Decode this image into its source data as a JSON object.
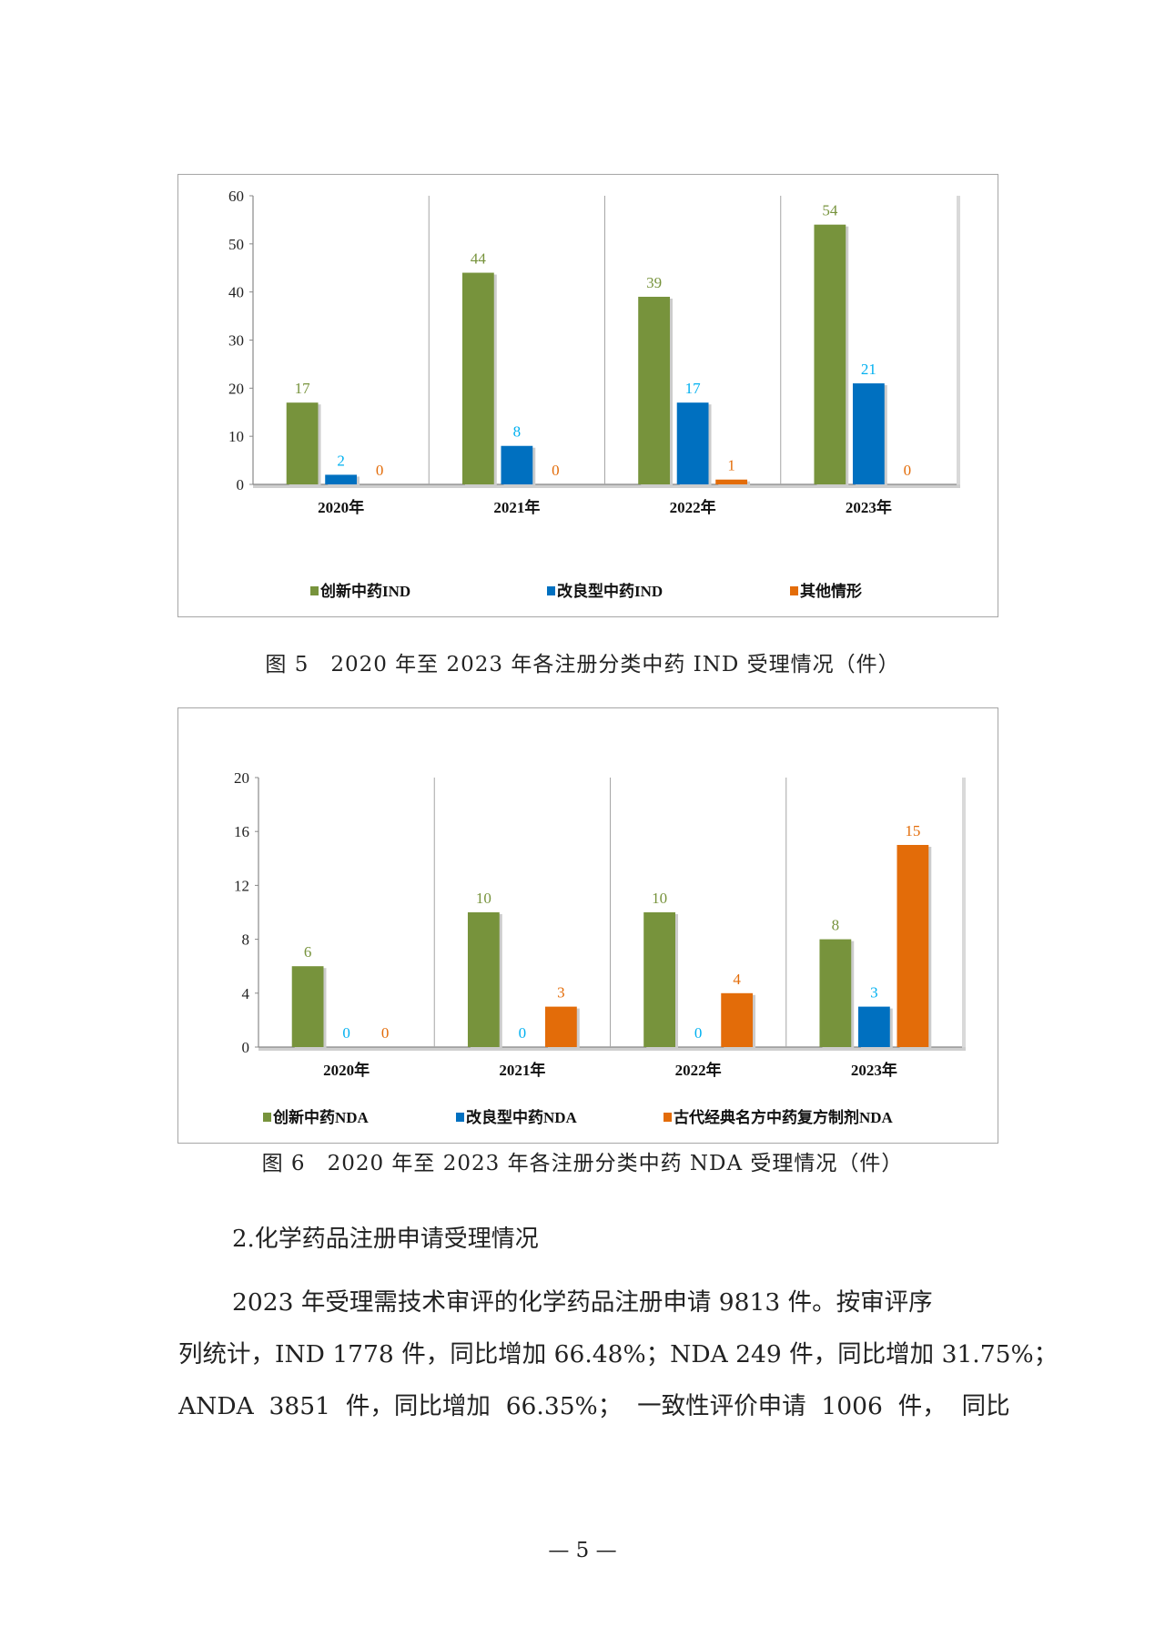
{
  "figures": [
    {
      "caption": "图 5　2020 年至 2023 年各注册分类中药 IND 受理情况（件）",
      "chart_data": {
        "type": "bar",
        "categories": [
          "2020年",
          "2021年",
          "2022年",
          "2023年"
        ],
        "series": [
          {
            "name": "创新中药IND",
            "values": [
              17,
              44,
              39,
              54
            ],
            "color": "#77933c",
            "label_color": "#77933c"
          },
          {
            "name": "改良型中药IND",
            "values": [
              2,
              8,
              17,
              21
            ],
            "color": "#0070c0",
            "label_color": "#00b0f0"
          },
          {
            "name": "其他情形",
            "values": [
              0,
              0,
              1,
              0
            ],
            "color": "#e36c09",
            "label_color": "#e36c09"
          }
        ],
        "ylim": [
          0,
          60
        ],
        "yticks": [
          0,
          10,
          20,
          30,
          40,
          50,
          60
        ],
        "legend": "bottom",
        "grid": false
      }
    },
    {
      "caption": "图 6　2020 年至 2023 年各注册分类中药 NDA 受理情况（件）",
      "chart_data": {
        "type": "bar",
        "categories": [
          "2020年",
          "2021年",
          "2022年",
          "2023年"
        ],
        "series": [
          {
            "name": "创新中药NDA",
            "values": [
              6,
              10,
              10,
              8
            ],
            "color": "#77933c",
            "label_color": "#77933c"
          },
          {
            "name": "改良型中药NDA",
            "values": [
              0,
              0,
              0,
              3
            ],
            "color": "#0070c0",
            "label_color": "#00b0f0"
          },
          {
            "name": "古代经典名方中药复方制剂NDA",
            "values": [
              0,
              3,
              4,
              15
            ],
            "color": "#e36c09",
            "label_color": "#e36c09"
          }
        ],
        "ylim": [
          0,
          20
        ],
        "yticks": [
          0,
          4,
          8,
          12,
          16,
          20
        ],
        "legend": "bottom",
        "grid": false
      }
    }
  ],
  "section": {
    "heading": "2.化学药品注册申请受理情况",
    "paragraph_lines": [
      "2023 年受理需技术审评的化学药品注册申请 9813 件。按审评序",
      "列统计，IND 1778 件，同比增加 66.48%；NDA 249 件，同比增加 31.75%；",
      "ANDA  3851  件，同比增加  66.35%；  一致性评价申请  1006  件，  同比"
    ]
  },
  "page_number": "— 5 —"
}
